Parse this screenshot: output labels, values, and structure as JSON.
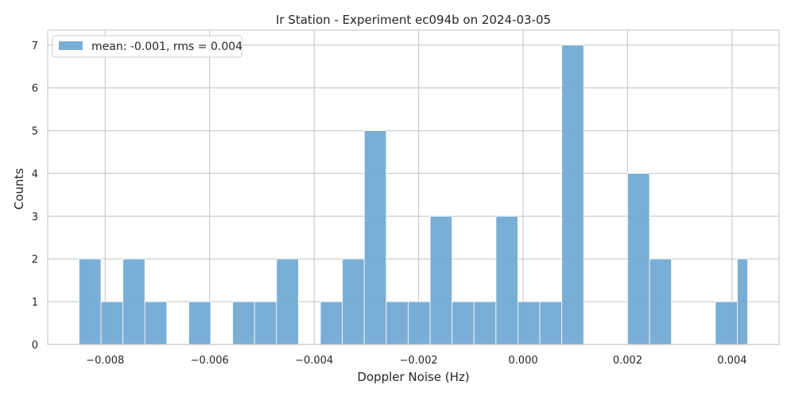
{
  "chart_data": {
    "type": "bar",
    "title": "Ir Station - Experiment ec094b on 2024-03-05",
    "xlabel": "Doppler Noise (Hz)",
    "ylabel": "Counts",
    "xlim": [
      -0.0091,
      0.0049
    ],
    "ylim": [
      0,
      7.35
    ],
    "xticks": [
      -0.008,
      -0.006,
      -0.004,
      -0.002,
      0.0,
      0.002,
      0.004
    ],
    "xtick_labels": [
      "−0.008",
      "−0.006",
      "−0.004",
      "−0.002",
      "0.000",
      "0.002",
      "0.004"
    ],
    "yticks": [
      0,
      1,
      2,
      3,
      4,
      5,
      6,
      7
    ],
    "ytick_labels": [
      "0",
      "1",
      "2",
      "3",
      "4",
      "5",
      "6",
      "7"
    ],
    "grid": true,
    "legend_position": "top-left",
    "bin_edges": [
      -0.0085,
      -0.00808,
      -0.00766,
      -0.00724,
      -0.00682,
      -0.0064,
      -0.00598,
      -0.00556,
      -0.00514,
      -0.00472,
      -0.0043,
      -0.00388,
      -0.00346,
      -0.00304,
      -0.00262,
      -0.0022,
      -0.00178,
      -0.00136,
      -0.00094,
      -0.00052,
      -0.0001,
      0.00032,
      0.00074,
      0.00116,
      0.00158,
      0.002,
      0.00242,
      0.00284,
      0.00326,
      0.00368,
      0.0041,
      0.0043
    ],
    "counts": [
      2,
      1,
      2,
      1,
      0,
      1,
      0,
      1,
      1,
      2,
      0,
      1,
      2,
      5,
      1,
      1,
      3,
      1,
      1,
      3,
      1,
      1,
      7,
      0,
      0,
      4,
      2,
      0,
      0,
      1,
      2
    ],
    "series": [
      {
        "name": "mean: -0.001, rms = 0.004",
        "color": "#6fa8d1"
      }
    ]
  }
}
